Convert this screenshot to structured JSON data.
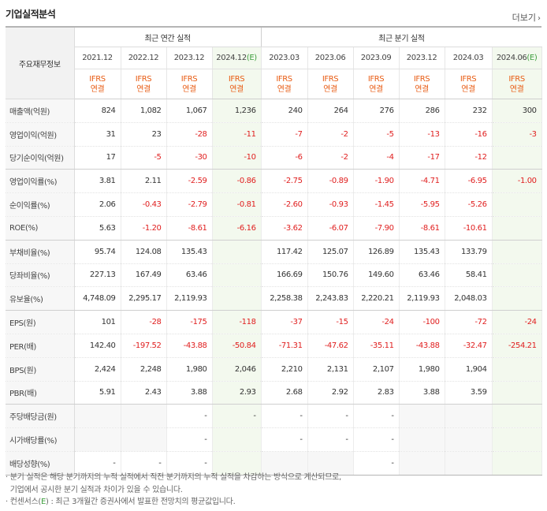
{
  "title": "기업실적분석",
  "more_label": "더보기",
  "more_icon": "chevron-right-icon",
  "row_header_label": "주요재무정보",
  "groups": {
    "annual": "최근 연간 실적",
    "quarterly": "최근 분기 실적"
  },
  "periods": [
    {
      "label": "2021.12",
      "estimate": false
    },
    {
      "label": "2022.12",
      "estimate": false
    },
    {
      "label": "2023.12",
      "estimate": false
    },
    {
      "label": "2024.12(E)",
      "estimate": true
    },
    {
      "label": "2023.03",
      "estimate": false
    },
    {
      "label": "2023.06",
      "estimate": false
    },
    {
      "label": "2023.09",
      "estimate": false
    },
    {
      "label": "2023.12",
      "estimate": false
    },
    {
      "label": "2024.03",
      "estimate": false
    },
    {
      "label": "2024.06(E)",
      "estimate": true
    }
  ],
  "basis_line1": "IFRS",
  "basis_line2": "연결",
  "rows": [
    {
      "label": "매출액(억원)",
      "values": [
        "824",
        "1,082",
        "1,067",
        "1,236",
        "240",
        "264",
        "276",
        "286",
        "232",
        "300"
      ]
    },
    {
      "label": "영업이익(억원)",
      "values": [
        "31",
        "23",
        "-28",
        "-11",
        "-7",
        "-2",
        "-5",
        "-13",
        "-16",
        "-3"
      ]
    },
    {
      "label": "당기순이익(억원)",
      "values": [
        "17",
        "-5",
        "-30",
        "-10",
        "-6",
        "-2",
        "-4",
        "-17",
        "-12",
        ""
      ]
    },
    {
      "label": "영업이익률(%)",
      "values": [
        "3.81",
        "2.11",
        "-2.59",
        "-0.86",
        "-2.75",
        "-0.89",
        "-1.90",
        "-4.71",
        "-6.95",
        "-1.00"
      ]
    },
    {
      "label": "순이익률(%)",
      "values": [
        "2.06",
        "-0.43",
        "-2.79",
        "-0.81",
        "-2.60",
        "-0.93",
        "-1.45",
        "-5.95",
        "-5.26",
        ""
      ]
    },
    {
      "label": "ROE(%)",
      "values": [
        "5.63",
        "-1.20",
        "-8.61",
        "-6.16",
        "-3.62",
        "-6.07",
        "-7.90",
        "-8.61",
        "-10.61",
        ""
      ]
    },
    {
      "label": "부채비율(%)",
      "values": [
        "95.74",
        "124.08",
        "135.43",
        "",
        "117.42",
        "125.07",
        "126.89",
        "135.43",
        "133.79",
        ""
      ]
    },
    {
      "label": "당좌비율(%)",
      "values": [
        "227.13",
        "167.49",
        "63.46",
        "",
        "166.69",
        "150.76",
        "149.60",
        "63.46",
        "58.41",
        ""
      ]
    },
    {
      "label": "유보율(%)",
      "values": [
        "4,748.09",
        "2,295.17",
        "2,119.93",
        "",
        "2,258.38",
        "2,243.83",
        "2,220.21",
        "2,119.93",
        "2,048.03",
        ""
      ]
    },
    {
      "label": "EPS(원)",
      "values": [
        "101",
        "-28",
        "-175",
        "-118",
        "-37",
        "-15",
        "-24",
        "-100",
        "-72",
        "-24"
      ]
    },
    {
      "label": "PER(배)",
      "values": [
        "142.40",
        "-197.52",
        "-43.88",
        "-50.84",
        "-71.31",
        "-47.62",
        "-35.11",
        "-43.88",
        "-32.47",
        "-254.21"
      ]
    },
    {
      "label": "BPS(원)",
      "values": [
        "2,424",
        "2,248",
        "1,980",
        "2,046",
        "2,210",
        "2,131",
        "2,107",
        "1,980",
        "1,904",
        ""
      ]
    },
    {
      "label": "PBR(배)",
      "values": [
        "5.91",
        "2.43",
        "3.88",
        "2.93",
        "2.68",
        "2.92",
        "2.83",
        "3.88",
        "3.59",
        ""
      ]
    },
    {
      "label": "주당배당금(원)",
      "values": [
        "",
        "",
        "-",
        "-",
        "-",
        "-",
        "-",
        "",
        "",
        ""
      ]
    },
    {
      "label": "시가배당률(%)",
      "values": [
        "",
        "",
        "-",
        "",
        "-",
        "-",
        "-",
        "",
        "",
        ""
      ]
    },
    {
      "label": "배당성향(%)",
      "values": [
        "-",
        "-",
        "-",
        "",
        "",
        "",
        "-",
        "",
        "",
        ""
      ]
    }
  ],
  "notes": {
    "line1": "분기 실적은 해당 분기까지의 누적 실적에서 직전 분기까지의 누적 실적을 차감하는 방식으로 계산되므로,",
    "line2": "기업에서 공시한 분기 실적과 차이가 있을 수 있습니다.",
    "line3_prefix": "컨센서스(",
    "line3_e": "E",
    "line3_suffix": ") : 최근 3개월간 증권사에서 발표한 전망치의 평균값입니다."
  },
  "colors": {
    "negative": "#e01e1e",
    "ifrs": "#e85c14",
    "estimate_text": "#3d9e3d",
    "estimate_bg": "#f3f9ee",
    "label_bg": "#f7f7f7"
  }
}
